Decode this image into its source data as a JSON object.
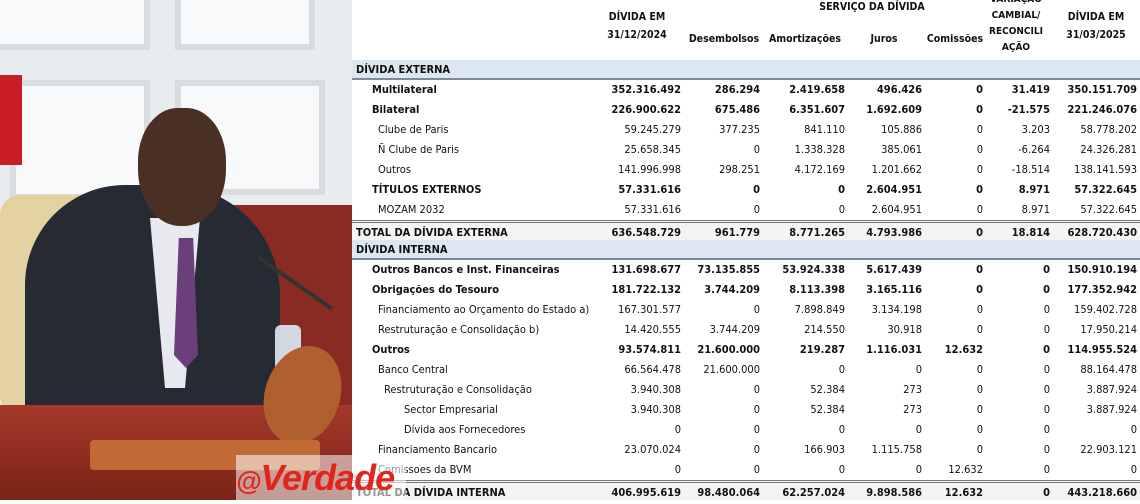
{
  "watermark": "@Verdade",
  "table": {
    "headers": {
      "col1": "DÍVIDA EM 31/12/2024",
      "service_group": "SERVIÇO DA DÍVIDA",
      "col2": "Desembolsos",
      "col3": "Amortizações",
      "col4": "Juros",
      "col5": "Comissões",
      "col6": "VARIAÇÃO CAMBIAL/ RECONCILI AÇÃO",
      "col7": "DÍVIDA EM 31/03/2025"
    },
    "rows": [
      {
        "label": "DÍVIDA EXTERNA",
        "type": "section",
        "indent": 0,
        "values": []
      },
      {
        "label": "Multilateral",
        "type": "bold",
        "indent": 1,
        "values": [
          "352.316.492",
          "286.294",
          "2.419.658",
          "496.426",
          "0",
          "31.419",
          "350.151.709"
        ]
      },
      {
        "label": "Bilateral",
        "type": "bold",
        "indent": 1,
        "values": [
          "226.900.622",
          "675.486",
          "6.351.607",
          "1.692.609",
          "0",
          "-21.575",
          "221.246.076"
        ]
      },
      {
        "label": "Clube de Paris",
        "type": "normal",
        "indent": 2,
        "values": [
          "59.245.279",
          "377.235",
          "841.110",
          "105.886",
          "0",
          "3.203",
          "58.778.202"
        ]
      },
      {
        "label": "Ñ Clube de Paris",
        "type": "normal",
        "indent": 2,
        "values": [
          "25.658.345",
          "0",
          "1.338.328",
          "385.061",
          "0",
          "-6.264",
          "24.326.281"
        ]
      },
      {
        "label": "Outros",
        "type": "normal",
        "indent": 2,
        "values": [
          "141.996.998",
          "298.251",
          "4.172.169",
          "1.201.662",
          "0",
          "-18.514",
          "138.141.593"
        ]
      },
      {
        "label": "TÍTULOS EXTERNOS",
        "type": "bold",
        "indent": 1,
        "values": [
          "57.331.616",
          "0",
          "0",
          "2.604.951",
          "0",
          "8.971",
          "57.322.645"
        ]
      },
      {
        "label": "MOZAM 2032",
        "type": "normal",
        "indent": 2,
        "values": [
          "57.331.616",
          "0",
          "0",
          "2.604.951",
          "0",
          "8.971",
          "57.322.645"
        ]
      },
      {
        "label": "TOTAL DA DÍVIDA EXTERNA",
        "type": "total",
        "indent": 0,
        "values": [
          "636.548.729",
          "961.779",
          "8.771.265",
          "4.793.986",
          "0",
          "18.814",
          "628.720.430"
        ]
      },
      {
        "label": "DÍVIDA INTERNA",
        "type": "section",
        "indent": 0,
        "values": []
      },
      {
        "label": "Outros Bancos e Inst. Financeiras",
        "type": "bold",
        "indent": 1,
        "values": [
          "131.698.677",
          "73.135.855",
          "53.924.338",
          "5.617.439",
          "0",
          "0",
          "150.910.194"
        ]
      },
      {
        "label": "Obrigações do Tesouro",
        "type": "bold",
        "indent": 1,
        "values": [
          "181.722.132",
          "3.744.209",
          "8.113.398",
          "3.165.116",
          "0",
          "0",
          "177.352.942"
        ]
      },
      {
        "label": "Financiamento ao Orçamento do Estado a)",
        "type": "normal",
        "indent": 2,
        "values": [
          "167.301.577",
          "0",
          "7.898.849",
          "3.134.198",
          "0",
          "0",
          "159.402.728"
        ]
      },
      {
        "label": "Restruturação e Consolidação b)",
        "type": "normal",
        "indent": 2,
        "values": [
          "14.420.555",
          "3.744.209",
          "214.550",
          "30.918",
          "0",
          "0",
          "17.950.214"
        ]
      },
      {
        "label": "Outros",
        "type": "bold",
        "indent": 1,
        "values": [
          "93.574.811",
          "21.600.000",
          "219.287",
          "1.116.031",
          "12.632",
          "0",
          "114.955.524"
        ]
      },
      {
        "label": "Banco Central",
        "type": "normal",
        "indent": 2,
        "values": [
          "66.564.478",
          "21.600.000",
          "0",
          "0",
          "0",
          "0",
          "88.164.478"
        ]
      },
      {
        "label": "Restruturação e Consolidação",
        "type": "normal",
        "indent": 3,
        "values": [
          "3.940.308",
          "0",
          "52.384",
          "273",
          "0",
          "0",
          "3.887.924"
        ]
      },
      {
        "label": "Sector Empresarial",
        "type": "normal",
        "indent": 4,
        "values": [
          "3.940.308",
          "0",
          "52.384",
          "273",
          "0",
          "0",
          "3.887.924"
        ]
      },
      {
        "label": "Dívida aos Fornecedores",
        "type": "normal",
        "indent": 4,
        "values": [
          "0",
          "0",
          "0",
          "0",
          "0",
          "0",
          "0"
        ]
      },
      {
        "label": "Financiamento Bancario",
        "type": "normal",
        "indent": 2,
        "values": [
          "23.070.024",
          "0",
          "166.903",
          "1.115.758",
          "0",
          "0",
          "22.903.121"
        ]
      },
      {
        "label": "Comissoes da BVM",
        "type": "normal",
        "indent": 2,
        "values": [
          "0",
          "0",
          "0",
          "0",
          "12.632",
          "0",
          "0"
        ]
      },
      {
        "label": "TOTAL DA DÍVIDA INTERNA",
        "type": "total",
        "indent": 0,
        "values": [
          "406.995.619",
          "98.480.064",
          "62.257.024",
          "9.898.586",
          "12.632",
          "0",
          "443.218.660"
        ]
      }
    ]
  }
}
